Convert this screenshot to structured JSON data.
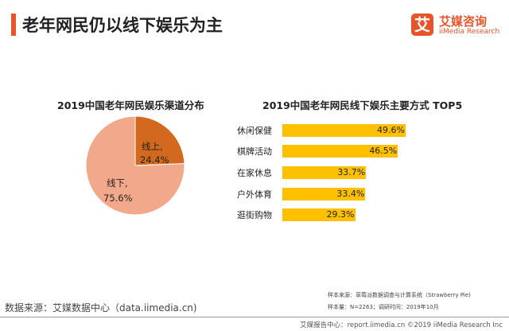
{
  "header": {
    "title": "老年网民仍以线下娱乐为主"
  },
  "logo": {
    "mark": "艾",
    "cn": "艾媒咨询",
    "en": "iiMedia Research"
  },
  "colors": {
    "accent": "#E8542A",
    "pie_online": "#D2691E",
    "pie_offline": "#F2A98B",
    "bar": "#FFC000"
  },
  "chart_data": [
    {
      "type": "pie",
      "title": "2019中国老年网民娱乐渠道分布",
      "slices": [
        {
          "label": "线上,",
          "value": 24.4,
          "display": "24.4%"
        },
        {
          "label": "线下,",
          "value": 75.6,
          "display": "75.6%"
        }
      ]
    },
    {
      "type": "bar",
      "orientation": "horizontal",
      "title": "2019中国老年网民线下娱乐主要方式 TOP5",
      "categories": [
        "休闲保健",
        "棋牌活动",
        "在家休息",
        "户外体育",
        "逛街购物"
      ],
      "values": [
        49.6,
        46.5,
        33.7,
        33.4,
        29.3
      ],
      "labels": [
        "49.6%",
        "46.5%",
        "33.7%",
        "33.4%",
        "29.3%"
      ]
    }
  ],
  "footer": {
    "source": "数据来源：艾媒数据中心（data.iimedia.cn)",
    "sample_source": "样本来源：草莓派数据调查与计算系统（Strawberry Pie)",
    "sample_size": "样本量：N=2263；调研时间：2019年10月",
    "copyright": "艾媒报告中心：report.iimedia.cn ©2019 iiMedia Research Inc"
  }
}
